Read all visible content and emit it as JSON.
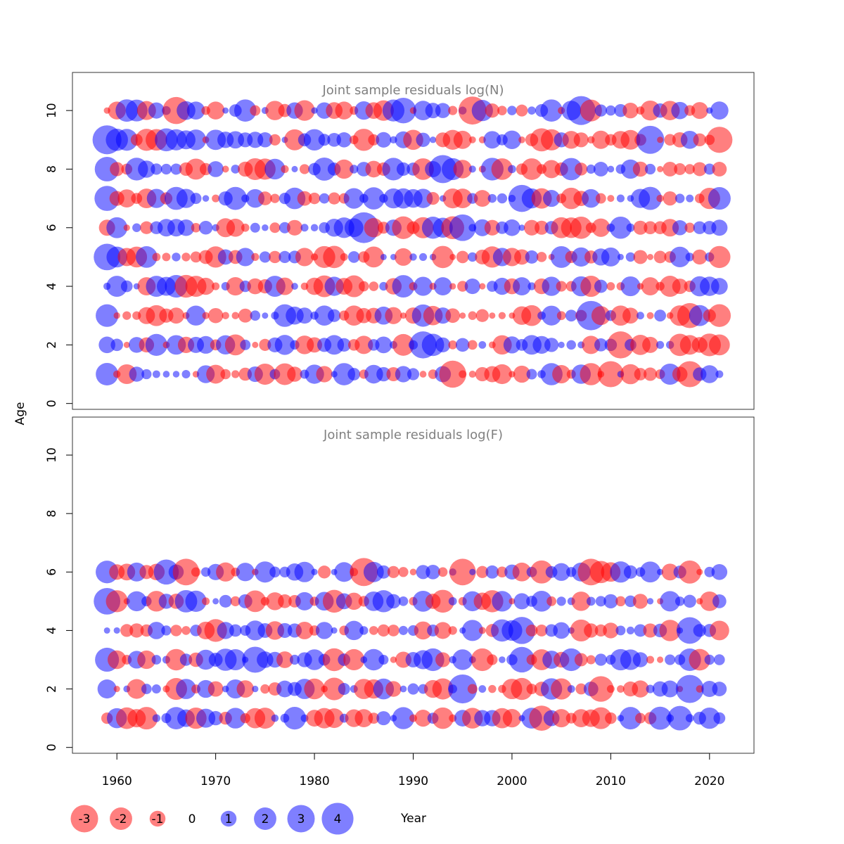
{
  "chart_data": {
    "type": "bubble-residuals",
    "xlabel": "Year",
    "ylabel": "Age",
    "x_ticks": [
      1960,
      1970,
      1980,
      1990,
      2000,
      2010,
      2020
    ],
    "y_ticks": [
      0,
      2,
      4,
      6,
      8,
      10
    ],
    "xlim": [
      1955.5,
      2024.5
    ],
    "ylim": [
      -0.2,
      11.3
    ],
    "year_range": [
      1959,
      2021
    ],
    "colors": {
      "negative": "#ff0000",
      "positive": "#0000ff",
      "title": "#808080"
    },
    "panels": [
      {
        "title": "Joint sample residuals log(N)",
        "ages": [
          1,
          2,
          3,
          4,
          5,
          6,
          7,
          8,
          9,
          10
        ],
        "notable_residuals": [
          {
            "year": 1959,
            "age": 9,
            "value": 3.2
          },
          {
            "year": 1959,
            "age": 5,
            "value": 2.7
          },
          {
            "year": 1959,
            "age": 7,
            "value": 2.4
          },
          {
            "year": 1959,
            "age": 8,
            "value": 2.3
          },
          {
            "year": 1966,
            "age": 10,
            "value": -2.8
          },
          {
            "year": 1985,
            "age": 6,
            "value": 3.6
          },
          {
            "year": 1989,
            "age": 10,
            "value": 2.5
          },
          {
            "year": 1991,
            "age": 2,
            "value": 2.8
          },
          {
            "year": 1993,
            "age": 8,
            "value": 3.0
          },
          {
            "year": 1994,
            "age": 1,
            "value": -2.8
          },
          {
            "year": 1995,
            "age": 6,
            "value": 2.7
          },
          {
            "year": 1996,
            "age": 10,
            "value": -3.0
          },
          {
            "year": 2001,
            "age": 7,
            "value": 2.8
          },
          {
            "year": 2007,
            "age": 10,
            "value": 3.2
          },
          {
            "year": 2008,
            "age": 3,
            "value": 3.3
          },
          {
            "year": 2010,
            "age": 1,
            "value": -2.6
          },
          {
            "year": 2011,
            "age": 2,
            "value": -2.8
          },
          {
            "year": 2014,
            "age": 9,
            "value": 3.0
          },
          {
            "year": 2018,
            "age": 1,
            "value": -2.6
          },
          {
            "year": 2018,
            "age": 3,
            "value": -2.4
          },
          {
            "year": 2021,
            "age": 9,
            "value": -2.6
          }
        ]
      },
      {
        "title": "Joint sample residuals log(F)",
        "ages": [
          1,
          2,
          3,
          4,
          5,
          6
        ],
        "notable_residuals": [
          {
            "year": 1959,
            "age": 5,
            "value": 2.7
          },
          {
            "year": 1959,
            "age": 3,
            "value": 2.2
          },
          {
            "year": 1965,
            "age": 6,
            "value": 2.4
          },
          {
            "year": 1967,
            "age": 6,
            "value": -2.7
          },
          {
            "year": 1974,
            "age": 3,
            "value": 2.6
          },
          {
            "year": 1985,
            "age": 6,
            "value": -3.0
          },
          {
            "year": 1995,
            "age": 2,
            "value": 3.2
          },
          {
            "year": 1995,
            "age": 6,
            "value": -2.7
          },
          {
            "year": 2001,
            "age": 4,
            "value": 2.8
          },
          {
            "year": 2001,
            "age": 3,
            "value": 2.5
          },
          {
            "year": 2003,
            "age": 1,
            "value": -2.4
          },
          {
            "year": 2008,
            "age": 6,
            "value": -2.7
          },
          {
            "year": 2009,
            "age": 2,
            "value": -2.5
          },
          {
            "year": 2017,
            "age": 1,
            "value": 2.3
          },
          {
            "year": 2018,
            "age": 2,
            "value": 3.0
          },
          {
            "year": 2018,
            "age": 4,
            "value": 2.7
          }
        ]
      }
    ],
    "legend": {
      "placement": "bottom-left",
      "items": [
        {
          "label": "-3",
          "value": -3
        },
        {
          "label": "-2",
          "value": -2
        },
        {
          "label": "-1",
          "value": -1
        },
        {
          "label": "0",
          "value": 0
        },
        {
          "label": "1",
          "value": 1
        },
        {
          "label": "2",
          "value": 2
        },
        {
          "label": "3",
          "value": 3
        },
        {
          "label": "4",
          "value": 4
        }
      ]
    }
  }
}
